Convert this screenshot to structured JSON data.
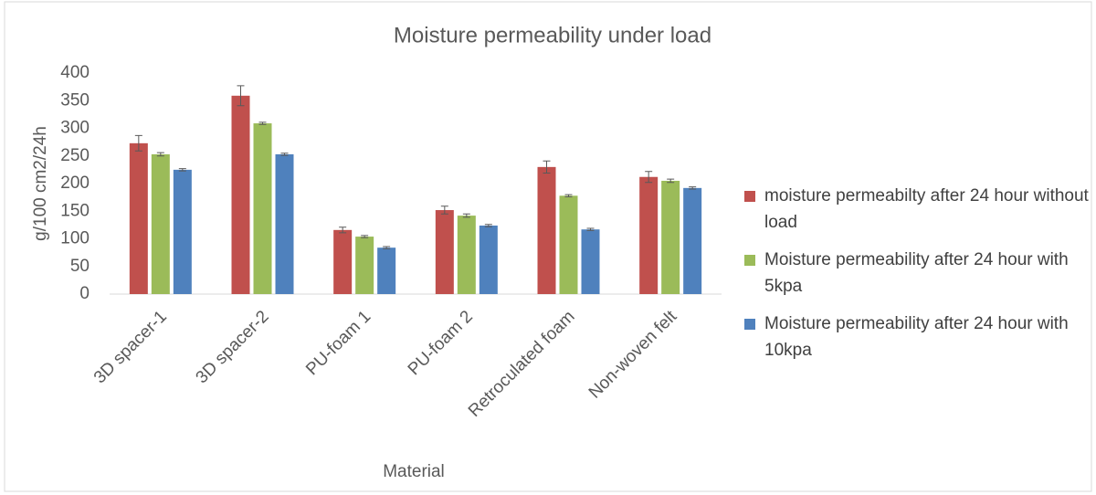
{
  "chart_data": {
    "type": "bar",
    "title": "Moisture permeability under load",
    "x_label": "Material",
    "y_label": "g/100 cm2/24h",
    "categories": [
      "3D spacer-1",
      "3D spacer-2",
      "PU-foam 1",
      "PU-foam 2",
      "Retroculated foam",
      "Non-woven felt"
    ],
    "series": [
      {
        "name": "moisture permeabilty after 24 hour without load",
        "color": "#c0504d",
        "values": [
          273,
          359,
          116,
          152,
          230,
          212
        ],
        "errors": [
          14,
          18,
          5,
          7,
          11,
          10
        ]
      },
      {
        "name": "Moisture permeability after 24 hour with 5kpa",
        "color": "#9bbb59",
        "values": [
          253,
          309,
          104,
          142,
          178,
          205
        ],
        "errors": [
          3,
          2,
          2,
          3,
          2,
          3
        ]
      },
      {
        "name": "Moisture permeability after 24 hour with 10kpa",
        "color": "#4f81bd",
        "values": [
          225,
          253,
          84,
          124,
          117,
          192
        ],
        "errors": [
          2,
          2,
          2,
          2,
          2,
          2
        ]
      }
    ],
    "ylim": [
      0,
      400
    ],
    "yticks": [
      0,
      50,
      100,
      150,
      200,
      250,
      300,
      350,
      400
    ],
    "grid": false,
    "legend": "right"
  }
}
